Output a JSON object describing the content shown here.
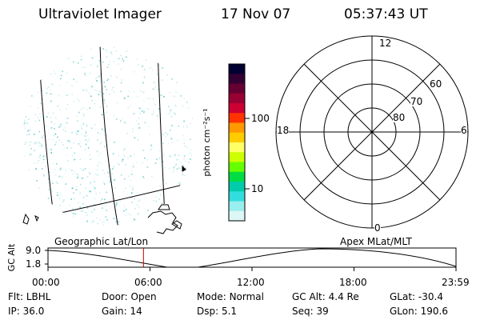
{
  "header": {
    "instrument": "Ultraviolet Imager",
    "date": "17 Nov 07",
    "time": "05:37:43 UT"
  },
  "colorbar": {
    "unit_label": "photon cm⁻²s⁻¹",
    "ticks": [
      "100",
      "10"
    ],
    "colors": [
      "#000033",
      "#330033",
      "#660033",
      "#990033",
      "#cc0033",
      "#ff3300",
      "#ff9900",
      "#ffcc00",
      "#ffff66",
      "#ccff00",
      "#66ff00",
      "#00dd44",
      "#00ccaa",
      "#33dddd",
      "#99eeee",
      "#ddf6f6"
    ]
  },
  "globe_panel": {
    "label": "Geographic Lat/Lon",
    "speckle_color": "#66cccc"
  },
  "polar_panel": {
    "label": "Apex MLat/MLT",
    "mlt_labels": {
      "top": "12",
      "bottom": "0",
      "left": "18",
      "right": "6"
    },
    "lat_labels": [
      "60",
      "70",
      "80"
    ]
  },
  "altitude_plot": {
    "ylabel": "GC Alt",
    "y_ticks": [
      "9.0",
      "1.8"
    ],
    "x_ticks": [
      "00:00",
      "06:00",
      "12:00",
      "18:00",
      "23:59"
    ],
    "current_time_color": "#cc0000",
    "current_time_fraction": 0.234
  },
  "info": {
    "row1": [
      {
        "key": "Flt:",
        "value": "LBHL"
      },
      {
        "key": "Door:",
        "value": "Open"
      },
      {
        "key": "Mode:",
        "value": "Normal"
      },
      {
        "key": "GC Alt:",
        "value": "4.4 Re"
      },
      {
        "key": "GLat:",
        "value": "-30.4"
      }
    ],
    "row2": [
      {
        "key": "IP:",
        "value": "36.0"
      },
      {
        "key": "Gain:",
        "value": "14"
      },
      {
        "key": "Dsp:",
        "value": "5.1"
      },
      {
        "key": "Seq:",
        "value": "39"
      },
      {
        "key": "GLon:",
        "value": "190.6"
      }
    ]
  }
}
